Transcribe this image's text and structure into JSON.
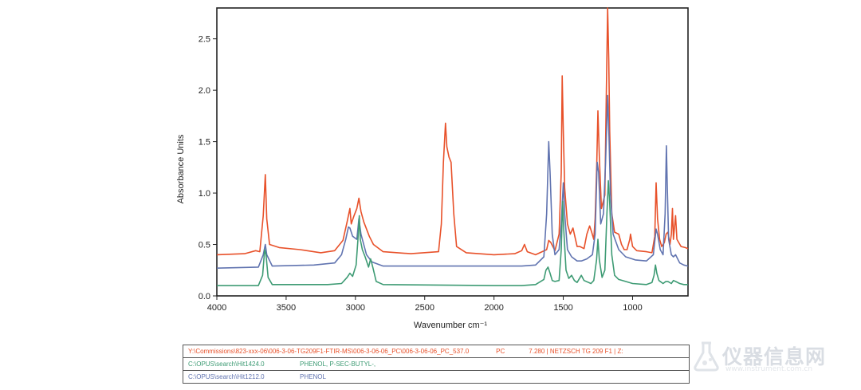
{
  "chart_data": {
    "type": "line",
    "xlabel": "Wavenumber cm⁻¹",
    "ylabel": "Absorbance Units",
    "xlim": [
      4000,
      600
    ],
    "ylim": [
      0,
      2.8
    ],
    "x_ticks": [
      4000,
      3500,
      3000,
      2500,
      2000,
      1500,
      1000
    ],
    "y_ticks": [
      0.0,
      0.5,
      1.0,
      1.5,
      2.0,
      2.5
    ],
    "x_tick_labels": [
      "4000",
      "3500",
      "3000",
      "2500",
      "2000",
      "1500",
      "1000"
    ],
    "y_tick_labels": [
      "0.0",
      "0.5",
      "1.0",
      "1.5",
      "2.0",
      "2.5"
    ],
    "grid": false,
    "series": [
      {
        "color": "#e8512a",
        "points": [
          [
            4000,
            0.4
          ],
          [
            3800,
            0.41
          ],
          [
            3720,
            0.44
          ],
          [
            3690,
            0.43
          ],
          [
            3665,
            0.78
          ],
          [
            3650,
            1.18
          ],
          [
            3640,
            0.75
          ],
          [
            3620,
            0.5
          ],
          [
            3550,
            0.47
          ],
          [
            3400,
            0.45
          ],
          [
            3250,
            0.42
          ],
          [
            3150,
            0.44
          ],
          [
            3090,
            0.54
          ],
          [
            3060,
            0.72
          ],
          [
            3040,
            0.85
          ],
          [
            3030,
            0.7
          ],
          [
            3010,
            0.78
          ],
          [
            2990,
            0.85
          ],
          [
            2975,
            0.95
          ],
          [
            2960,
            0.82
          ],
          [
            2940,
            0.72
          ],
          [
            2900,
            0.58
          ],
          [
            2870,
            0.5
          ],
          [
            2800,
            0.43
          ],
          [
            2600,
            0.41
          ],
          [
            2400,
            0.43
          ],
          [
            2380,
            0.7
          ],
          [
            2365,
            1.3
          ],
          [
            2350,
            1.68
          ],
          [
            2340,
            1.45
          ],
          [
            2325,
            1.35
          ],
          [
            2310,
            1.3
          ],
          [
            2290,
            0.8
          ],
          [
            2270,
            0.48
          ],
          [
            2200,
            0.42
          ],
          [
            2000,
            0.4
          ],
          [
            1850,
            0.41
          ],
          [
            1800,
            0.44
          ],
          [
            1780,
            0.5
          ],
          [
            1760,
            0.43
          ],
          [
            1700,
            0.4
          ],
          [
            1620,
            0.45
          ],
          [
            1605,
            0.54
          ],
          [
            1590,
            0.52
          ],
          [
            1560,
            0.44
          ],
          [
            1530,
            0.6
          ],
          [
            1515,
            1.2
          ],
          [
            1508,
            2.14
          ],
          [
            1500,
            1.6
          ],
          [
            1490,
            1.05
          ],
          [
            1470,
            0.7
          ],
          [
            1450,
            0.6
          ],
          [
            1430,
            0.66
          ],
          [
            1400,
            0.48
          ],
          [
            1380,
            0.48
          ],
          [
            1350,
            0.46
          ],
          [
            1330,
            0.6
          ],
          [
            1310,
            0.68
          ],
          [
            1295,
            0.62
          ],
          [
            1280,
            0.55
          ],
          [
            1270,
            0.75
          ],
          [
            1258,
            1.3
          ],
          [
            1250,
            1.8
          ],
          [
            1240,
            1.35
          ],
          [
            1225,
            0.85
          ],
          [
            1200,
            0.98
          ],
          [
            1190,
            1.9
          ],
          [
            1180,
            2.8
          ],
          [
            1172,
            2.3
          ],
          [
            1165,
            1.6
          ],
          [
            1150,
            0.8
          ],
          [
            1130,
            0.62
          ],
          [
            1100,
            0.6
          ],
          [
            1080,
            0.5
          ],
          [
            1060,
            0.45
          ],
          [
            1040,
            0.45
          ],
          [
            1020,
            0.55
          ],
          [
            1015,
            0.6
          ],
          [
            1000,
            0.48
          ],
          [
            970,
            0.44
          ],
          [
            900,
            0.43
          ],
          [
            860,
            0.42
          ],
          [
            840,
            0.58
          ],
          [
            830,
            1.1
          ],
          [
            820,
            0.75
          ],
          [
            805,
            0.55
          ],
          [
            790,
            0.48
          ],
          [
            770,
            0.52
          ],
          [
            758,
            0.6
          ],
          [
            745,
            0.62
          ],
          [
            730,
            0.5
          ],
          [
            720,
            0.6
          ],
          [
            712,
            0.85
          ],
          [
            705,
            0.55
          ],
          [
            690,
            0.78
          ],
          [
            680,
            0.55
          ],
          [
            650,
            0.48
          ],
          [
            620,
            0.47
          ],
          [
            600,
            0.46
          ]
        ]
      },
      {
        "color": "#6174b0",
        "points": [
          [
            4000,
            0.27
          ],
          [
            3700,
            0.28
          ],
          [
            3665,
            0.4
          ],
          [
            3650,
            0.5
          ],
          [
            3640,
            0.4
          ],
          [
            3600,
            0.29
          ],
          [
            3300,
            0.3
          ],
          [
            3150,
            0.32
          ],
          [
            3100,
            0.4
          ],
          [
            3070,
            0.55
          ],
          [
            3050,
            0.67
          ],
          [
            3040,
            0.66
          ],
          [
            3020,
            0.58
          ],
          [
            2990,
            0.55
          ],
          [
            2975,
            0.75
          ],
          [
            2960,
            0.6
          ],
          [
            2920,
            0.4
          ],
          [
            2880,
            0.33
          ],
          [
            2800,
            0.29
          ],
          [
            2000,
            0.29
          ],
          [
            1900,
            0.29
          ],
          [
            1800,
            0.29
          ],
          [
            1700,
            0.3
          ],
          [
            1640,
            0.38
          ],
          [
            1620,
            0.8
          ],
          [
            1605,
            1.5
          ],
          [
            1595,
            1.2
          ],
          [
            1580,
            0.6
          ],
          [
            1560,
            0.4
          ],
          [
            1530,
            0.45
          ],
          [
            1515,
            0.7
          ],
          [
            1500,
            1.1
          ],
          [
            1490,
            0.8
          ],
          [
            1470,
            0.45
          ],
          [
            1440,
            0.38
          ],
          [
            1400,
            0.34
          ],
          [
            1370,
            0.34
          ],
          [
            1330,
            0.36
          ],
          [
            1290,
            0.4
          ],
          [
            1270,
            0.6
          ],
          [
            1255,
            1.3
          ],
          [
            1245,
            1.2
          ],
          [
            1230,
            0.7
          ],
          [
            1210,
            0.8
          ],
          [
            1195,
            1.3
          ],
          [
            1180,
            1.95
          ],
          [
            1170,
            1.55
          ],
          [
            1160,
            1.0
          ],
          [
            1140,
            0.6
          ],
          [
            1100,
            0.45
          ],
          [
            1050,
            0.38
          ],
          [
            980,
            0.35
          ],
          [
            900,
            0.34
          ],
          [
            850,
            0.4
          ],
          [
            830,
            0.65
          ],
          [
            820,
            0.6
          ],
          [
            800,
            0.45
          ],
          [
            780,
            0.4
          ],
          [
            765,
            0.8
          ],
          [
            756,
            1.46
          ],
          [
            750,
            1.1
          ],
          [
            740,
            0.55
          ],
          [
            720,
            0.4
          ],
          [
            705,
            0.38
          ],
          [
            690,
            0.4
          ],
          [
            660,
            0.32
          ],
          [
            630,
            0.3
          ],
          [
            600,
            0.29
          ]
        ]
      },
      {
        "color": "#3e9b74",
        "points": [
          [
            4000,
            0.1
          ],
          [
            3700,
            0.1
          ],
          [
            3670,
            0.2
          ],
          [
            3655,
            0.45
          ],
          [
            3645,
            0.4
          ],
          [
            3630,
            0.18
          ],
          [
            3600,
            0.11
          ],
          [
            3200,
            0.11
          ],
          [
            3100,
            0.12
          ],
          [
            3060,
            0.18
          ],
          [
            3040,
            0.22
          ],
          [
            3020,
            0.19
          ],
          [
            2995,
            0.3
          ],
          [
            2982,
            0.55
          ],
          [
            2972,
            0.78
          ],
          [
            2965,
            0.55
          ],
          [
            2950,
            0.45
          ],
          [
            2930,
            0.38
          ],
          [
            2905,
            0.28
          ],
          [
            2890,
            0.36
          ],
          [
            2875,
            0.28
          ],
          [
            2850,
            0.14
          ],
          [
            2800,
            0.11
          ],
          [
            2000,
            0.1
          ],
          [
            1800,
            0.1
          ],
          [
            1700,
            0.11
          ],
          [
            1640,
            0.16
          ],
          [
            1625,
            0.25
          ],
          [
            1610,
            0.28
          ],
          [
            1595,
            0.22
          ],
          [
            1580,
            0.15
          ],
          [
            1560,
            0.14
          ],
          [
            1530,
            0.15
          ],
          [
            1515,
            0.45
          ],
          [
            1505,
            0.92
          ],
          [
            1497,
            0.65
          ],
          [
            1480,
            0.25
          ],
          [
            1460,
            0.17
          ],
          [
            1440,
            0.2
          ],
          [
            1420,
            0.15
          ],
          [
            1400,
            0.13
          ],
          [
            1370,
            0.2
          ],
          [
            1350,
            0.15
          ],
          [
            1300,
            0.12
          ],
          [
            1280,
            0.15
          ],
          [
            1260,
            0.35
          ],
          [
            1250,
            0.55
          ],
          [
            1240,
            0.35
          ],
          [
            1220,
            0.18
          ],
          [
            1200,
            0.25
          ],
          [
            1185,
            0.8
          ],
          [
            1175,
            1.12
          ],
          [
            1165,
            0.9
          ],
          [
            1150,
            0.4
          ],
          [
            1130,
            0.2
          ],
          [
            1100,
            0.16
          ],
          [
            1050,
            0.14
          ],
          [
            1000,
            0.12
          ],
          [
            900,
            0.11
          ],
          [
            860,
            0.13
          ],
          [
            845,
            0.2
          ],
          [
            835,
            0.3
          ],
          [
            825,
            0.22
          ],
          [
            810,
            0.15
          ],
          [
            780,
            0.12
          ],
          [
            760,
            0.14
          ],
          [
            745,
            0.14
          ],
          [
            720,
            0.12
          ],
          [
            705,
            0.15
          ],
          [
            690,
            0.14
          ],
          [
            660,
            0.12
          ],
          [
            630,
            0.11
          ],
          [
            600,
            0.11
          ]
        ]
      }
    ]
  },
  "legend": {
    "rows": [
      {
        "path": "Y:\\Commissions\\823-xxx-06\\006-3-06-TG209F1-FTIR-MS\\006-3-06-06_PC\\006-3-06-06_PC_537.0",
        "desc": "PC",
        "extra": "7.280 | NETZSCH TG 209 F1 | Z:",
        "color": "#e8512a"
      },
      {
        "path": "C:\\OPUS\\search\\Hit1424.0",
        "desc": "PHENOL, P-SEC-BUTYL-,",
        "extra": "",
        "color": "#3e9b74"
      },
      {
        "path": "C:\\OPUS\\search\\Hit1212.0",
        "desc": "PHENOL",
        "extra": "",
        "color": "#6174b0"
      }
    ]
  },
  "watermark": {
    "text": "仪器信息网",
    "url": "www.instrument.com.cn"
  }
}
